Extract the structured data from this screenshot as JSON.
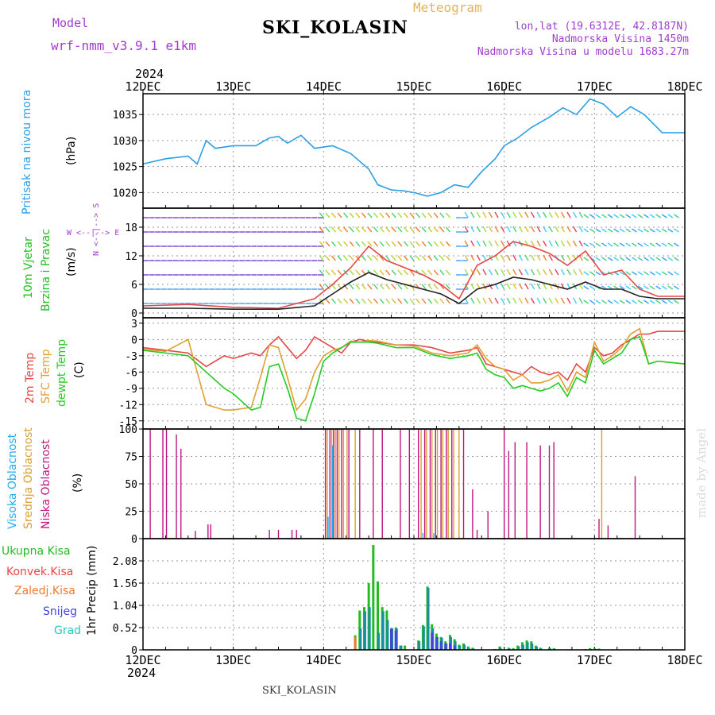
{
  "header": {
    "model_label": "Model",
    "model_name": "wrf-nmm_v3.9.1  e1km",
    "title": "SKI_KOLASIN",
    "subtitle": "Meteogram",
    "lonlat": "lon,lat (19.6312E, 42.8187N)",
    "elevation": "Nadmorska Visina 1450m",
    "model_elevation": "Nadmorska Visina u modelu 1683.27m",
    "year_top": "2024",
    "year_bottom": "2024",
    "footer_station": "SKI_KOLASIN",
    "credit": "made by Angel"
  },
  "axis_dates": [
    "12DEC",
    "13DEC",
    "14DEC",
    "15DEC",
    "16DEC",
    "17DEC",
    "18DEC"
  ],
  "panel_labels": {
    "pressure": {
      "name": "Pritisak na nivou mora",
      "unit": "(hPa)",
      "color": "#2b9fe6"
    },
    "wind": {
      "name1": "10m Vjetar",
      "name2": "Brzina i Pravac",
      "unit": "(m/s)",
      "color": "#1fbf1f",
      "compass": "W <--|--> E",
      "compass_v": "N <--|--> S"
    },
    "temp": {
      "names": [
        {
          "text": "2m Temp",
          "color": "#e64646"
        },
        {
          "text": "SFC Temp",
          "color": "#e0a030"
        },
        {
          "text": "dewpt Temp",
          "color": "#22cc22"
        }
      ],
      "unit": "(C)"
    },
    "cloud": {
      "names": [
        {
          "text": "Visoka Oblacnost",
          "color": "#22aaee"
        },
        {
          "text": "Srednja Oblacnost",
          "color": "#d9a030"
        },
        {
          "text": "Niska Oblacnost",
          "color": "#c0157e"
        }
      ],
      "unit": "(%)"
    },
    "precip": {
      "unit": "1hr Precip (mm)",
      "legend": [
        {
          "text": "Ukupna Kisa",
          "color": "#22bb22"
        },
        {
          "text": "Konvek.Kisa",
          "color": "#e64646"
        },
        {
          "text": "Zaledj.Kisa",
          "color": "#f07830"
        },
        {
          "text": "Snijeg",
          "color": "#4444dd"
        },
        {
          "text": "Grad",
          "color": "#22ccbb"
        }
      ]
    }
  },
  "chart_data": [
    {
      "type": "line",
      "title": "Pritisak na nivou mora",
      "ylabel": "(hPa)",
      "ylim": [
        1017,
        1039
      ],
      "yticks": [
        1020,
        1025,
        1030,
        1035
      ],
      "x_days": [
        0,
        0.25,
        0.5,
        0.6,
        0.7,
        0.8,
        1.0,
        1.25,
        1.4,
        1.5,
        1.6,
        1.75,
        1.9,
        2.1,
        2.3,
        2.5,
        2.6,
        2.75,
        2.9,
        3.0,
        3.15,
        3.3,
        3.45,
        3.6,
        3.75,
        3.9,
        4.0,
        4.15,
        4.3,
        4.5,
        4.65,
        4.8,
        4.95,
        5.1,
        5.25,
        5.4,
        5.55,
        5.75,
        6.0
      ],
      "series": [
        {
          "color": "#2b9fe6",
          "values": [
            1025.5,
            1026.5,
            1027.0,
            1025.5,
            1030.0,
            1028.5,
            1029.0,
            1029.0,
            1030.5,
            1030.8,
            1029.5,
            1031.0,
            1028.5,
            1029.0,
            1027.5,
            1024.5,
            1021.5,
            1020.5,
            1020.3,
            1020.0,
            1019.3,
            1020.0,
            1021.5,
            1021.0,
            1024.0,
            1026.5,
            1029.0,
            1030.5,
            1032.5,
            1034.5,
            1036.3,
            1035.0,
            1038.0,
            1037.0,
            1034.5,
            1036.5,
            1035.0,
            1031.5,
            1031.5
          ]
        }
      ]
    },
    {
      "type": "line",
      "title": "10m Vjetar Brzina i Pravac",
      "ylabel": "(m/s)",
      "ylim": [
        -1,
        22
      ],
      "yticks": [
        0,
        6,
        12,
        18
      ],
      "wind_rows": [
        2,
        5,
        8,
        11,
        14,
        17,
        20
      ],
      "x_days": [
        0,
        0.5,
        1.0,
        1.5,
        1.9,
        2.1,
        2.3,
        2.5,
        2.7,
        2.9,
        3.1,
        3.3,
        3.5,
        3.7,
        3.9,
        4.1,
        4.3,
        4.5,
        4.7,
        4.9,
        5.1,
        5.3,
        5.5,
        5.7,
        6.0
      ],
      "series": [
        {
          "name": "gust",
          "color": "#e64646",
          "values": [
            1.5,
            1.8,
            1.2,
            1.0,
            3.0,
            6.0,
            9.5,
            14.0,
            11.0,
            9.5,
            8.0,
            6.0,
            3.0,
            10.0,
            12.0,
            15.0,
            14.0,
            12.5,
            10.0,
            13.0,
            8.0,
            9.0,
            5.0,
            3.5,
            3.5
          ]
        },
        {
          "name": "speed",
          "color": "#222222",
          "values": [
            1.0,
            1.0,
            0.8,
            0.8,
            1.5,
            4.0,
            6.5,
            8.5,
            7.0,
            6.0,
            5.0,
            4.0,
            2.0,
            5.0,
            6.0,
            7.5,
            7.0,
            6.0,
            5.0,
            6.5,
            5.0,
            5.0,
            3.5,
            3.0,
            3.0
          ]
        }
      ]
    },
    {
      "type": "line",
      "title": "Temp",
      "ylabel": "(C)",
      "ylim": [
        -16.5,
        4
      ],
      "yticks": [
        -15,
        -12,
        -9,
        -6,
        -3,
        0,
        3
      ],
      "x_days": [
        0,
        0.25,
        0.5,
        0.7,
        0.9,
        1.0,
        1.2,
        1.3,
        1.4,
        1.5,
        1.6,
        1.7,
        1.8,
        1.9,
        2.0,
        2.1,
        2.2,
        2.3,
        2.4,
        2.5,
        2.6,
        2.8,
        3.0,
        3.2,
        3.4,
        3.6,
        3.7,
        3.8,
        3.9,
        4.0,
        4.1,
        4.2,
        4.3,
        4.4,
        4.5,
        4.6,
        4.7,
        4.8,
        4.9,
        5.0,
        5.1,
        5.2,
        5.3,
        5.4,
        5.5,
        5.6,
        5.7,
        6.0
      ],
      "series": [
        {
          "name": "2m Temp",
          "color": "#e64646",
          "values": [
            -1.5,
            -2.0,
            -2.5,
            -5.0,
            -3.0,
            -3.5,
            -2.5,
            -3.0,
            -1.0,
            0.5,
            -1.5,
            -3.5,
            -2.0,
            0.5,
            -0.5,
            -1.5,
            -2.5,
            -0.5,
            0.0,
            -0.3,
            -0.5,
            -1.0,
            -1.0,
            -1.5,
            -2.5,
            -2.0,
            -1.5,
            -4.5,
            -5.0,
            -5.5,
            -6.0,
            -6.5,
            -5.0,
            -6.0,
            -6.5,
            -6.0,
            -7.5,
            -4.5,
            -6.0,
            -1.5,
            -3.0,
            -2.5,
            -1.0,
            0.0,
            1.0,
            1.0,
            1.5,
            1.5
          ]
        },
        {
          "name": "SFC Temp",
          "color": "#e0a030",
          "values": [
            -1.8,
            -2.2,
            0.0,
            -12.0,
            -13.0,
            -13.0,
            -12.5,
            -7.0,
            -1.0,
            -1.5,
            -7.0,
            -13.0,
            -11.0,
            -6.0,
            -3.0,
            -2.0,
            -1.5,
            -0.3,
            -0.5,
            -0.2,
            -0.3,
            -1.0,
            -1.2,
            -2.5,
            -3.0,
            -2.5,
            -1.0,
            -3.5,
            -5.0,
            -5.5,
            -7.5,
            -6.5,
            -8.0,
            -8.0,
            -7.5,
            -6.5,
            -9.5,
            -6.0,
            -7.0,
            -0.5,
            -4.0,
            -3.0,
            -1.5,
            1.0,
            2.0,
            -4.5,
            -4.0,
            -4.5
          ]
        },
        {
          "name": "dewpt Temp",
          "color": "#22cc22",
          "values": [
            -2.0,
            -2.5,
            -3.0,
            -6.0,
            -9.0,
            -10.0,
            -13.0,
            -12.5,
            -5.0,
            -4.5,
            -9.0,
            -14.5,
            -15.0,
            -10.0,
            -4.0,
            -2.5,
            -1.5,
            -0.5,
            -0.5,
            -0.5,
            -0.7,
            -1.5,
            -1.5,
            -2.8,
            -3.5,
            -3.0,
            -2.5,
            -5.5,
            -6.5,
            -7.0,
            -9.0,
            -8.5,
            -9.0,
            -9.5,
            -9.0,
            -8.0,
            -10.5,
            -7.0,
            -8.0,
            -2.0,
            -4.5,
            -3.5,
            -2.5,
            0.0,
            0.5,
            -4.5,
            -4.0,
            -4.5
          ]
        }
      ]
    },
    {
      "type": "bar",
      "title": "Oblacnost",
      "ylabel": "(%)",
      "ylim": [
        0,
        100
      ],
      "yticks": [
        0,
        25,
        50,
        75,
        100
      ],
      "series": [
        {
          "name": "Niska Oblacnost",
          "color": "#c0157e",
          "x": [
            0.08,
            0.22,
            0.26,
            0.37,
            0.42,
            0.58,
            0.72,
            0.75,
            1.4,
            1.5,
            1.65,
            1.7,
            2.02,
            2.07,
            2.11,
            2.15,
            2.2,
            2.28,
            2.4,
            2.55,
            2.65,
            2.85,
            2.95,
            3.05,
            3.12,
            3.18,
            3.24,
            3.3,
            3.36,
            3.42,
            3.55,
            3.65,
            3.7,
            3.82,
            4.0,
            4.05,
            4.12,
            4.25,
            4.4,
            4.5,
            4.55,
            5.05,
            5.15,
            5.45
          ],
          "values": [
            100,
            100,
            100,
            95,
            82,
            7,
            13,
            13,
            8,
            8,
            8,
            8,
            100,
            100,
            100,
            100,
            100,
            100,
            100,
            100,
            100,
            100,
            100,
            100,
            100,
            100,
            100,
            100,
            100,
            100,
            100,
            45,
            8,
            25,
            100,
            80,
            88,
            88,
            85,
            85,
            88,
            18,
            12,
            57
          ]
        },
        {
          "name": "Srednja Oblacnost",
          "color": "#d9a030",
          "x": [
            2.04,
            2.09,
            2.13,
            2.17,
            2.22,
            2.26,
            2.35,
            3.08,
            3.14,
            3.2,
            3.26,
            3.32,
            3.38,
            3.44,
            3.5,
            5.08
          ],
          "values": [
            100,
            100,
            100,
            100,
            100,
            100,
            100,
            100,
            100,
            100,
            100,
            100,
            100,
            100,
            100,
            100
          ]
        },
        {
          "name": "Visoka Oblacnost",
          "color": "#22aaee",
          "x": [
            2.05,
            2.1,
            3.1,
            3.22
          ],
          "values": [
            20,
            85,
            5,
            5
          ]
        }
      ]
    },
    {
      "type": "bar",
      "title": "1hr Precip",
      "ylabel": "1hr Precip (mm)",
      "ylim": [
        0,
        2.6
      ],
      "yticks": [
        0,
        0.52,
        1.04,
        1.56,
        2.08
      ],
      "x": [
        2.35,
        2.4,
        2.45,
        2.5,
        2.55,
        2.6,
        2.65,
        2.7,
        2.75,
        2.8,
        2.85,
        2.9,
        3.05,
        3.1,
        3.15,
        3.2,
        3.25,
        3.3,
        3.35,
        3.4,
        3.45,
        3.5,
        3.55,
        3.6,
        3.65,
        3.9,
        3.95,
        4.05,
        4.1,
        4.15,
        4.2,
        4.25,
        4.3,
        4.35,
        4.4,
        4.5,
        4.55,
        4.9,
        4.95,
        5.0,
        5.05
      ],
      "series": [
        {
          "name": "Ukupna Kisa",
          "color": "#22bb22",
          "values": [
            0.34,
            0.92,
            1.0,
            1.56,
            2.45,
            1.6,
            1.0,
            0.92,
            0.5,
            0.52,
            0.1,
            0.1,
            0.22,
            0.58,
            1.48,
            0.6,
            0.38,
            0.3,
            0.2,
            0.35,
            0.25,
            0.12,
            0.15,
            0.08,
            0.05,
            0.02,
            0.08,
            0.05,
            0.04,
            0.1,
            0.18,
            0.22,
            0.2,
            0.1,
            0.05,
            0.05,
            0.04,
            0.02,
            0.04,
            0.04,
            0.03
          ]
        },
        {
          "name": "Grad",
          "color": "#1a8fa0",
          "values": [
            0.0,
            0.5,
            0.9,
            1.0,
            0.0,
            0.4,
            0.9,
            0.7,
            0.5,
            0.5,
            0.1,
            0.0,
            0.2,
            0.55,
            1.45,
            0.5,
            0.3,
            0.28,
            0.15,
            0.3,
            0.2,
            0.1,
            0.12,
            0.05,
            0.03,
            0.0,
            0.05,
            0.03,
            0.02,
            0.08,
            0.12,
            0.18,
            0.15,
            0.08,
            0.03,
            0.03,
            0.02,
            0.0,
            0.02,
            0.02,
            0.01
          ]
        },
        {
          "name": "Zaledj.Kisa",
          "color": "#f07830",
          "values": [
            0.3,
            0.0,
            0.0,
            0.0,
            0.0,
            0.0,
            0.0,
            0.0,
            0.0,
            0.0,
            0.0,
            0.0,
            0.0,
            0.0,
            0.0,
            0.0,
            0.0,
            0.0,
            0.0,
            0.0,
            0.0,
            0.0,
            0.0,
            0.0,
            0.0,
            0.0,
            0.0,
            0.0,
            0.0,
            0.0,
            0.0,
            0.0,
            0.0,
            0.0,
            0.0,
            0.0,
            0.0,
            0.0,
            0.0,
            0.0,
            0.0
          ]
        },
        {
          "name": "Snijeg",
          "color": "#4444dd",
          "values": [
            0.0,
            0.0,
            0.0,
            0.0,
            0.0,
            0.0,
            0.0,
            0.0,
            0.5,
            0.45,
            0.0,
            0.0,
            0.0,
            0.0,
            0.0,
            0.4,
            0.3,
            0.2,
            0.15,
            0.15,
            0.1,
            0.0,
            0.0,
            0.0,
            0.0,
            0.0,
            0.0,
            0.0,
            0.0,
            0.0,
            0.0,
            0.0,
            0.0,
            0.0,
            0.0,
            0.0,
            0.0,
            0.0,
            0.0,
            0.0,
            0.0
          ]
        }
      ]
    }
  ]
}
